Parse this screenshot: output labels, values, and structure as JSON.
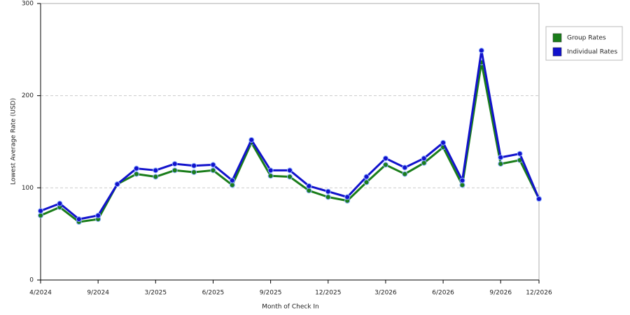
{
  "chart_data": {
    "type": "line",
    "x_label": "Month of Check In",
    "y_label": "Lowest Average Rate (USD)",
    "categories": [
      "4/2024",
      null,
      null,
      "9/2024",
      null,
      null,
      "3/2025",
      null,
      null,
      "6/2025",
      null,
      null,
      "9/2025",
      null,
      null,
      "12/2025",
      null,
      null,
      "3/2026",
      null,
      null,
      "6/2026",
      null,
      null,
      "9/2026",
      null,
      "12/2026"
    ],
    "series": [
      {
        "name": "Group Rates",
        "color": "#1a7d1a",
        "values": [
          70,
          79,
          63,
          66,
          104,
          115,
          112,
          119,
          117,
          119,
          103,
          149,
          113,
          112,
          97,
          90,
          86,
          106,
          125,
          115,
          127,
          144,
          103,
          236,
          126,
          130,
          88
        ]
      },
      {
        "name": "Individual Rates",
        "color": "#1212cc",
        "values": [
          75,
          83,
          66,
          70,
          104,
          121,
          119,
          126,
          124,
          125,
          108,
          152,
          119,
          119,
          102,
          96,
          90,
          112,
          132,
          122,
          132,
          149,
          108,
          249,
          133,
          137,
          88
        ]
      }
    ],
    "ylim": [
      0,
      300
    ],
    "yticks": [
      0,
      100,
      200,
      300
    ],
    "grid": true,
    "legend": "right"
  }
}
